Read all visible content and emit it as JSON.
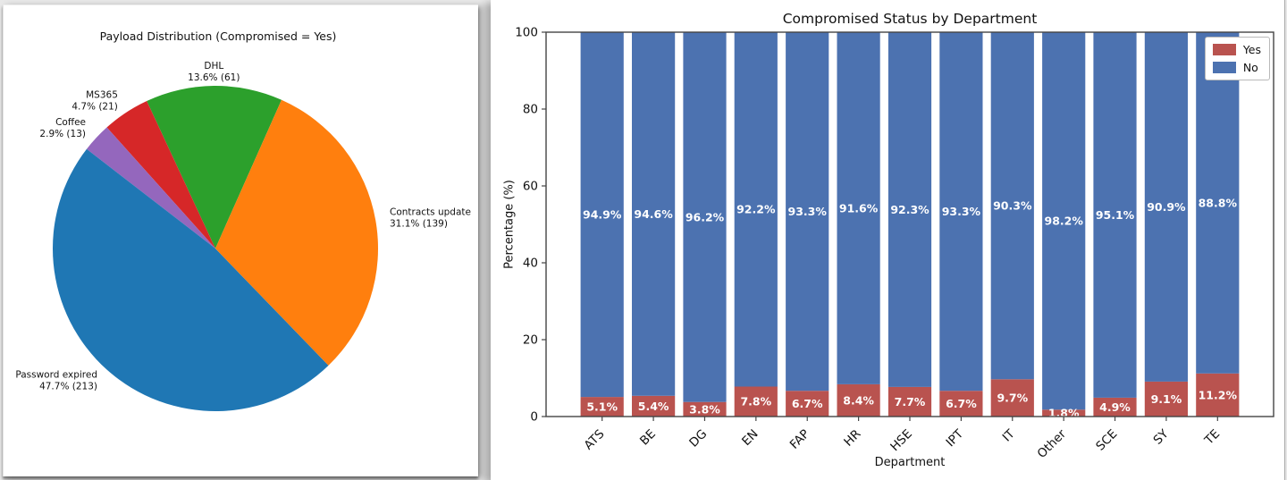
{
  "chart_data": [
    {
      "type": "pie",
      "title": "Payload Distribution (Compromised = Yes)",
      "labels": [
        "DHL",
        "MS365",
        "Coffee",
        "Password expired",
        "Contracts update"
      ],
      "values_pct": [
        13.6,
        4.7,
        2.9,
        47.7,
        31.1
      ],
      "counts": [
        61,
        21,
        13,
        213,
        139
      ],
      "colors": [
        "#2ca02c",
        "#d62728",
        "#9467bd",
        "#1f77b4",
        "#ff7f0e"
      ],
      "start_angle_deg": 66,
      "counterclock": true,
      "label_format": "{label} {pct}% ({count})",
      "legend": "none"
    },
    {
      "type": "bar",
      "stacked": true,
      "title": "Compromised Status by Department",
      "xlabel": "Department",
      "ylabel": "Percentage (%)",
      "ylim": [
        0,
        100
      ],
      "yticks": [
        0,
        20,
        40,
        60,
        80,
        100
      ],
      "grid": false,
      "categories": [
        "ATS",
        "BE",
        "DG",
        "EN",
        "FAP",
        "HR",
        "HSE",
        "IPT",
        "IT",
        "Other",
        "SCE",
        "SY",
        "TE"
      ],
      "series": [
        {
          "name": "Yes",
          "color": "#b9534f",
          "values": [
            5.1,
            5.4,
            3.8,
            7.8,
            6.7,
            8.4,
            7.7,
            6.7,
            9.7,
            1.8,
            4.9,
            9.1,
            11.2
          ]
        },
        {
          "name": "No",
          "color": "#4c72b0",
          "values": [
            94.9,
            94.6,
            96.2,
            92.2,
            93.3,
            91.6,
            92.3,
            93.3,
            90.3,
            98.2,
            95.1,
            90.9,
            88.8
          ]
        }
      ],
      "bar_label_color": "#ffffff",
      "legend_position": "upper right",
      "legend_entries": [
        "Yes",
        "No"
      ]
    }
  ]
}
